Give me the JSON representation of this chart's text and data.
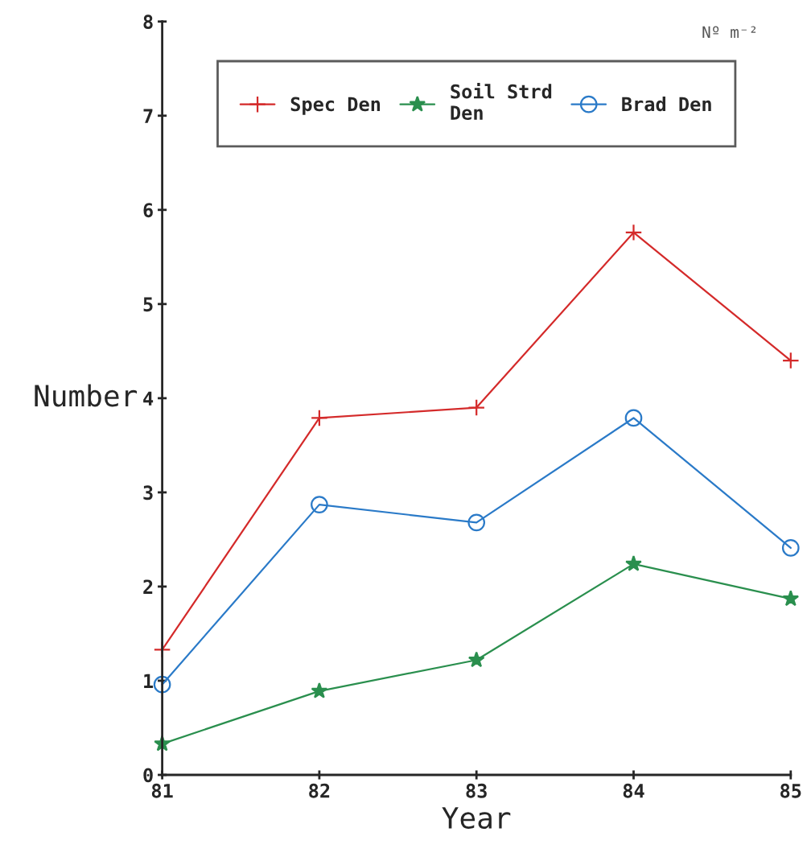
{
  "chart_data": {
    "type": "line",
    "xlabel": "Year",
    "ylabel": "Number",
    "x": [
      81,
      82,
      83,
      84,
      85
    ],
    "series": [
      {
        "name": "Spec Den",
        "color": "#d42a2a",
        "marker": "cross",
        "values": [
          1.33,
          3.79,
          3.9,
          5.76,
          4.4
        ]
      },
      {
        "name": "Soil Strd\nDen",
        "color": "#2a8f4e",
        "marker": "star",
        "values": [
          0.33,
          0.89,
          1.22,
          2.24,
          1.87
        ]
      },
      {
        "name": "Brad Den",
        "color": "#2a7ac8",
        "marker": "circle",
        "values": [
          0.96,
          2.87,
          2.68,
          3.79,
          2.41
        ]
      }
    ],
    "xlim": [
      81,
      85
    ],
    "xticks": [
      81,
      82,
      83,
      84,
      85
    ],
    "ylim": [
      0,
      8
    ],
    "yticks": [
      0,
      1,
      2,
      3,
      4,
      5,
      6,
      7,
      8
    ],
    "grid": false,
    "legend": "top",
    "line_style": "solid",
    "annotations": [
      "Nº m⁻²"
    ]
  }
}
